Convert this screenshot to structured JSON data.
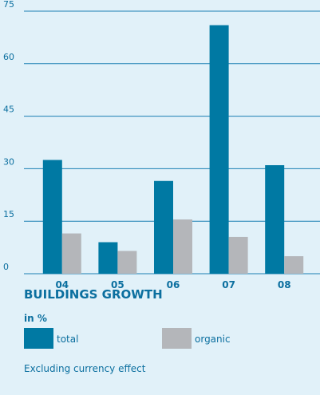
{
  "chart_data": {
    "type": "bar",
    "title": "BUILDINGS GROWTH",
    "subtitle": "in %",
    "note": "Excluding currency effect",
    "categories": [
      "04",
      "05",
      "06",
      "07",
      "08"
    ],
    "series": [
      {
        "name": "total",
        "color": "#0079a3",
        "values": [
          32.5,
          9,
          26.5,
          71,
          31
        ]
      },
      {
        "name": "organic",
        "color": "#b4b6ba",
        "values": [
          11.5,
          6.5,
          15.5,
          10.5,
          5
        ]
      }
    ],
    "ylim": [
      0,
      75
    ],
    "yticks": [
      0,
      15,
      30,
      45,
      60,
      75
    ],
    "grid": true
  }
}
